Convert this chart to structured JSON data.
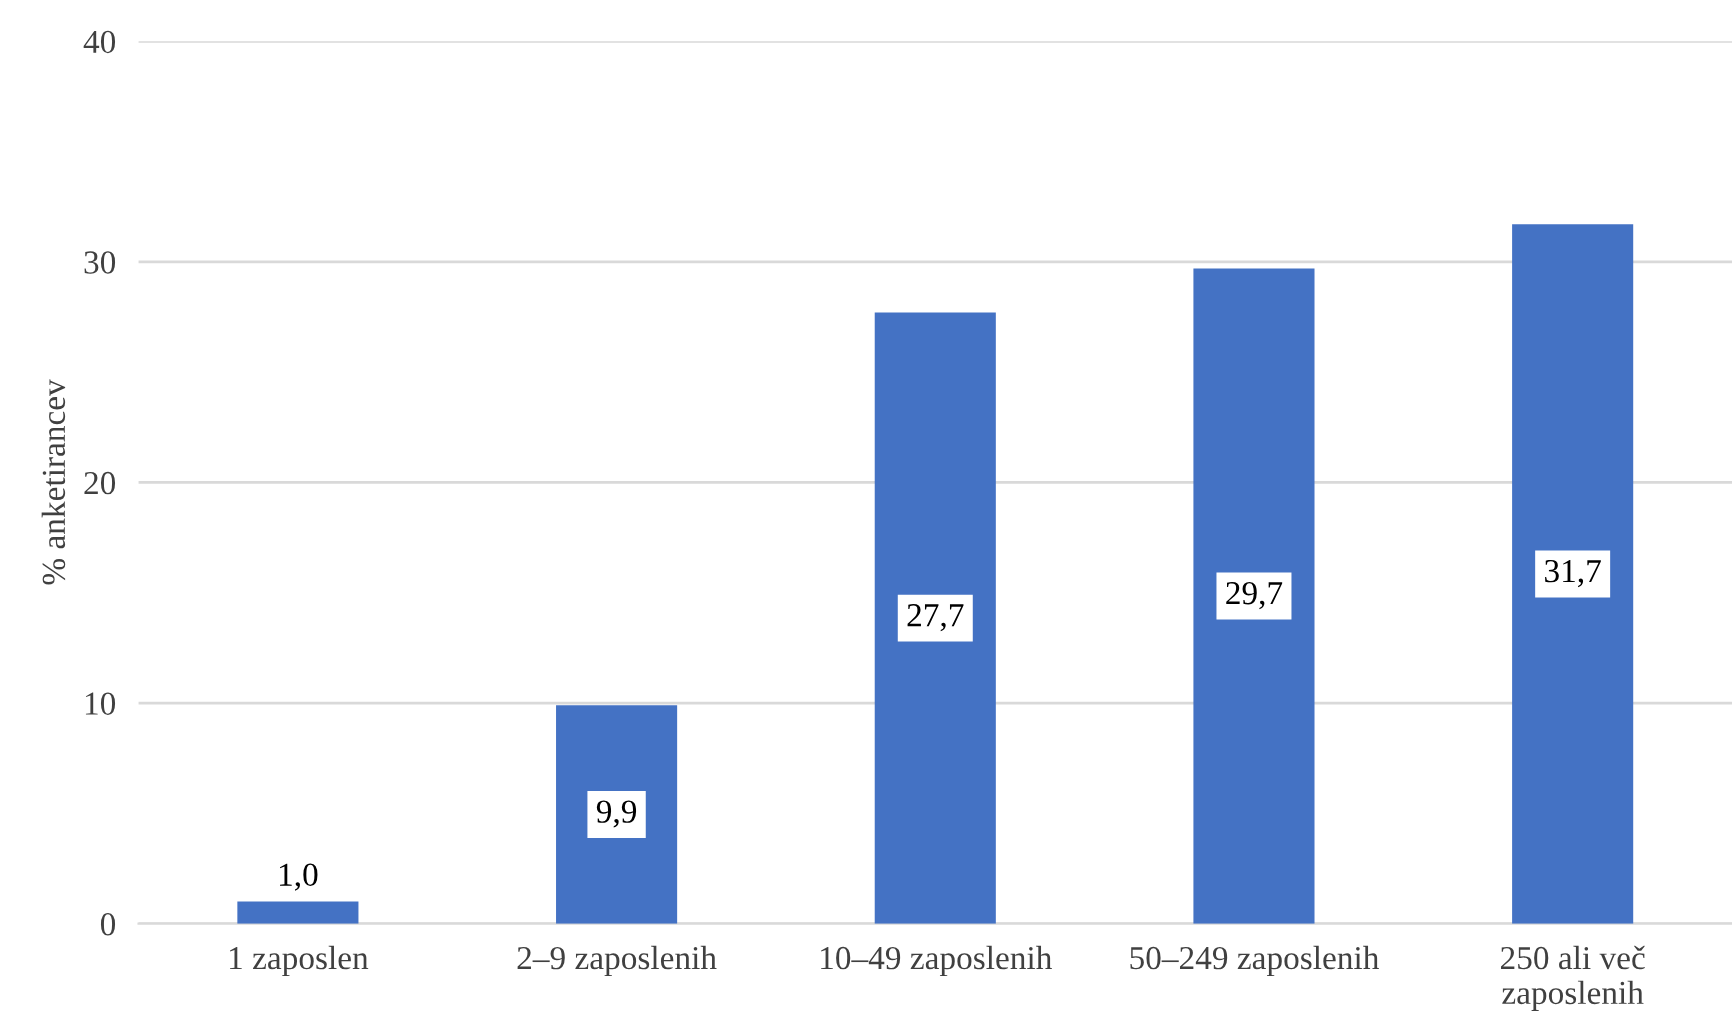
{
  "chart_data": {
    "type": "bar",
    "ylabel": "% anketirancev",
    "categories": [
      "1 zaposlen",
      "2–9 zaposlenih",
      "10–49 zaposlenih",
      "50–249 zaposlenih",
      "250 ali več\nzaposlenih"
    ],
    "values": [
      1.0,
      9.9,
      27.7,
      29.7,
      31.7
    ],
    "value_labels": [
      "1,0",
      "9,9",
      "27,7",
      "29,7",
      "31,7"
    ],
    "color": "#4472c4",
    "ylim": [
      0,
      40
    ],
    "yticks": [
      0,
      10,
      20,
      30,
      40
    ],
    "grid": "y"
  }
}
